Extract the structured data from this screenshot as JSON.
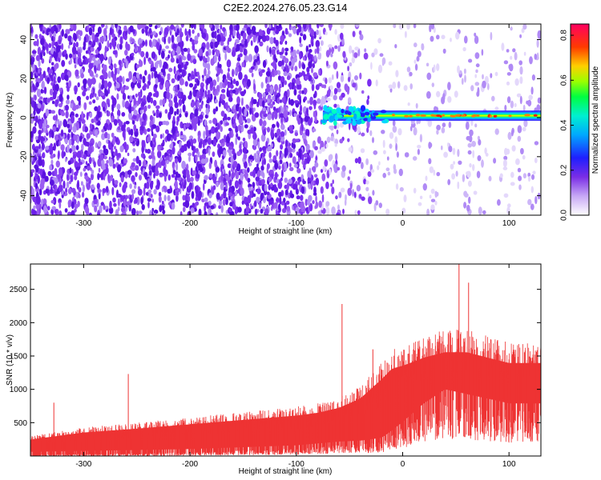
{
  "title": "C2E2.2024.276.05.23.G14",
  "chart_data": [
    {
      "type": "heatmap",
      "xlabel": "Height of straight line (km)",
      "ylabel": "Frequency (Hz)",
      "xlim": [
        -350,
        130
      ],
      "ylim": [
        -50,
        48
      ],
      "x_ticks": [
        -300,
        -200,
        -100,
        0,
        100
      ],
      "x_tick_labels": [
        "-300",
        "-200",
        "-100",
        "0",
        "100"
      ],
      "y_ticks": [
        -40,
        -20,
        0,
        20,
        40
      ],
      "y_tick_labels": [
        "-40",
        "-20",
        "0",
        "20",
        "40"
      ],
      "colorbar": {
        "label": "Normalized spectral amplitude",
        "range": [
          0.0,
          0.85
        ],
        "ticks": [
          0.0,
          0.2,
          0.4,
          0.6,
          0.8
        ],
        "tick_labels": [
          "0.0",
          "0.2",
          "0.4",
          "0.6",
          "0.8"
        ],
        "colormap": "rainbow (white-violet-blue-cyan-green-yellow-red-magenta)"
      },
      "features": {
        "noise_region_x": [
          -350,
          -80
        ],
        "noise_transition_x": [
          -80,
          -30
        ],
        "signal_band_start_x": -75,
        "signal_band_frequency": 1,
        "signal_band_level": 0.5
      }
    },
    {
      "type": "area",
      "xlabel": "Height of straight line (km)",
      "ylabel": "SNR (10 * v/v)",
      "xlim": [
        -350,
        130
      ],
      "ylim": [
        0,
        2880
      ],
      "x_ticks": [
        -300,
        -200,
        -100,
        0,
        100
      ],
      "x_tick_labels": [
        "-300",
        "-200",
        "-100",
        "0",
        "100"
      ],
      "y_ticks": [
        500,
        1000,
        1500,
        2000,
        2500
      ],
      "y_tick_labels": [
        "500",
        "1000",
        "1500",
        "2000",
        "2500"
      ],
      "color": "#ee3333",
      "series": [
        {
          "x": [
            -350,
            -300,
            -250,
            -200,
            -150,
            -100,
            -80,
            -60,
            -40,
            -20,
            -10,
            0,
            20,
            40,
            60,
            80,
            100,
            130
          ],
          "upper": [
            300,
            430,
            500,
            580,
            660,
            740,
            790,
            880,
            1050,
            1400,
            1600,
            1650,
            1800,
            1900,
            1900,
            1800,
            1700,
            1700
          ],
          "lower": [
            30,
            40,
            50,
            60,
            80,
            100,
            120,
            140,
            150,
            180,
            260,
            350,
            550,
            700,
            650,
            600,
            550,
            550
          ]
        }
      ],
      "spikes": [
        {
          "x": -328,
          "y": 800
        },
        {
          "x": -258,
          "y": 1230
        },
        {
          "x": -57,
          "y": 2280
        },
        {
          "x": -28,
          "y": 1600
        },
        {
          "x": 53,
          "y": 2880
        },
        {
          "x": 62,
          "y": 2600
        }
      ]
    }
  ]
}
